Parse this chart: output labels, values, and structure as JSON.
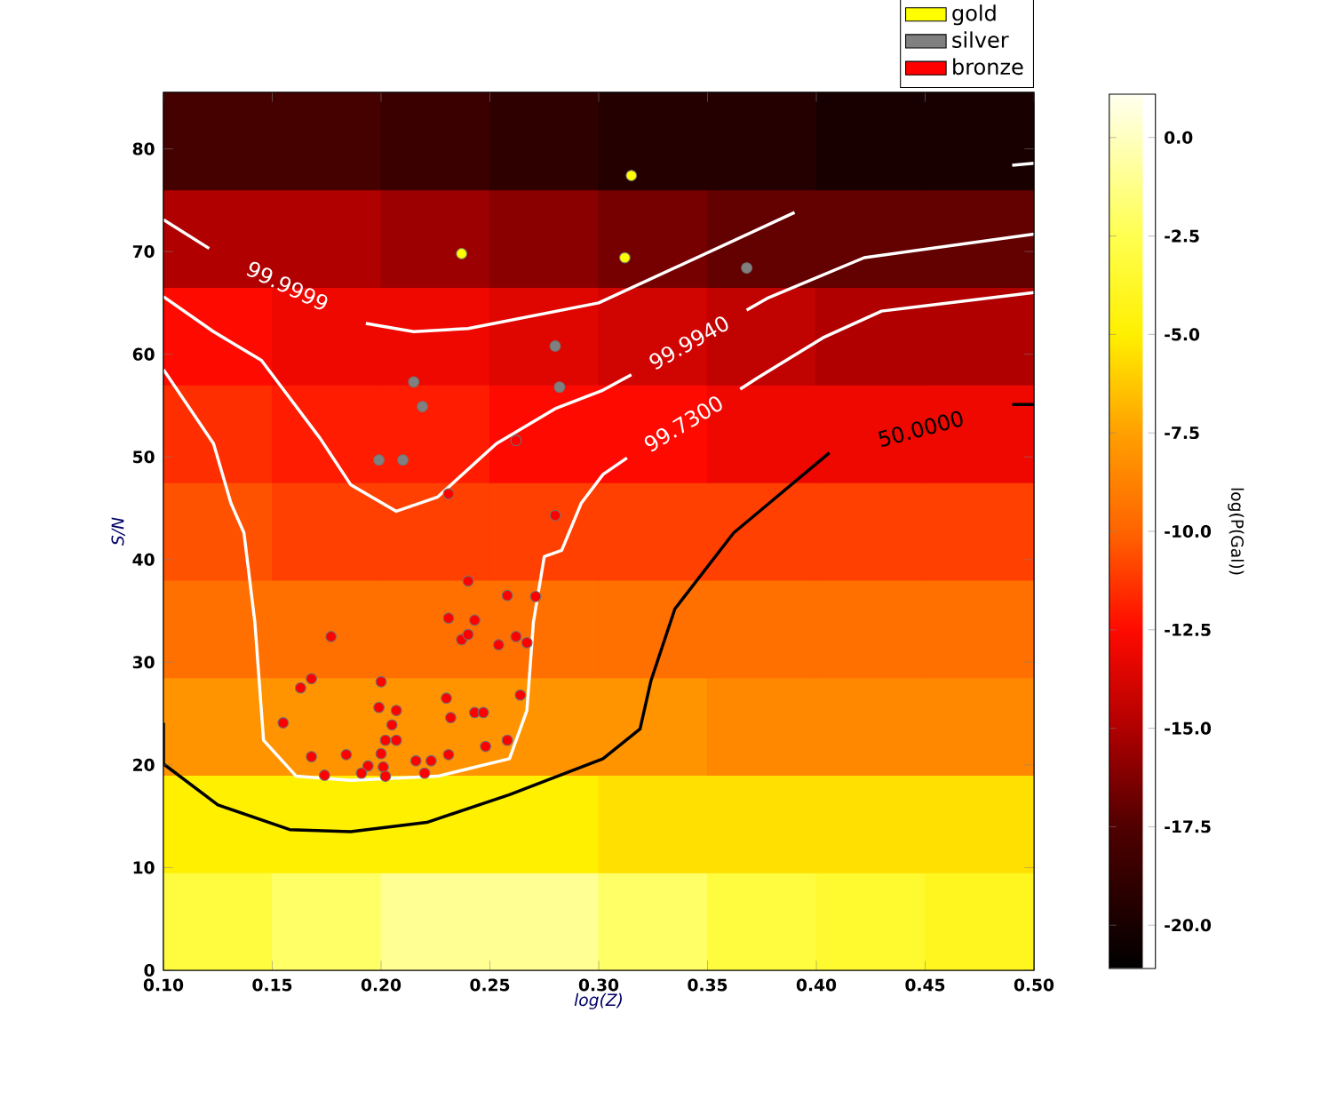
{
  "chart_data": [
    {
      "type": "heatmap",
      "clabel": "log(P(Gal))",
      "clim": [
        -21.1,
        1.1
      ],
      "cticks": [
        {
          "value": 0,
          "label": "0.0"
        },
        {
          "value": -2.5,
          "label": "-2.5"
        },
        {
          "value": -5,
          "label": "-5.0"
        },
        {
          "value": -7.5,
          "label": "-7.5"
        },
        {
          "value": -10,
          "label": "-10.0"
        },
        {
          "value": -12.5,
          "label": "-12.5"
        },
        {
          "value": -15,
          "label": "-15.0"
        },
        {
          "value": -17.5,
          "label": "-17.5"
        },
        {
          "value": -20,
          "label": "-20.0"
        }
      ],
      "categories": [
        null,
        null,
        null,
        null,
        null,
        null,
        null,
        null
      ],
      "y_categories": [
        null,
        null,
        null,
        null,
        null,
        null,
        null,
        null,
        null
      ],
      "cells": [
        [
          -18,
          -18,
          -18.5,
          -19,
          -19.5,
          -19.5,
          -20,
          -20
        ],
        [
          -15,
          -15,
          -15.5,
          -16,
          -16.5,
          -17,
          -17,
          -17
        ],
        [
          -12.5,
          -13,
          -13,
          -13.5,
          -14,
          -14.5,
          -15,
          -15
        ],
        [
          -11.5,
          -12,
          -12,
          -12.5,
          -12.5,
          -13,
          -13,
          -13
        ],
        [
          -10.5,
          -11,
          -11,
          -11,
          -11,
          -11,
          -11,
          -11
        ],
        [
          -9.5,
          -9.5,
          -9.5,
          -9.5,
          -9.5,
          -9.5,
          -9.5,
          -9.5
        ],
        [
          -8,
          -8,
          -8,
          -8,
          -8,
          -8.5,
          -8.5,
          -8.5
        ],
        [
          -5,
          -5,
          -5,
          -5,
          -5.5,
          -5.5,
          -5.5,
          -5.5
        ],
        [
          -3,
          -2,
          -1,
          -1,
          -2,
          -3,
          -3.5,
          -4
        ]
      ]
    },
    {
      "type": "scatter",
      "xlabel": "log(Z)",
      "ylabel": "S/N",
      "xlim": [
        0.1,
        0.5
      ],
      "xticks": [
        {
          "value": 0.1,
          "label": "0.10"
        },
        {
          "value": 0.15,
          "label": "0.15"
        },
        {
          "value": 0.2,
          "label": "0.20"
        },
        {
          "value": 0.25,
          "label": "0.25"
        },
        {
          "value": 0.3,
          "label": "0.30"
        },
        {
          "value": 0.35,
          "label": "0.35"
        },
        {
          "value": 0.4,
          "label": "0.40"
        },
        {
          "value": 0.45,
          "label": "0.45"
        },
        {
          "value": 0.5,
          "label": "0.50"
        }
      ],
      "ylim": [
        0,
        85.5
      ],
      "yticks": [
        0,
        10,
        20,
        30,
        40,
        50,
        60,
        70,
        80
      ],
      "legend": "top",
      "series": [
        {
          "type": "line",
          "name": "99.9999",
          "color": "#ffffff",
          "x": [
            0.1,
            0.121,
            null,
            0.193,
            0.215,
            0.24,
            0.3,
            0.39,
            null,
            0.49,
            0.5
          ],
          "values": [
            73.1,
            70.3,
            null,
            63.0,
            62.2,
            62.5,
            65.0,
            73.8,
            null,
            78.4,
            78.6
          ]
        },
        {
          "type": "line",
          "name": "99.9940",
          "color": "#ffffff",
          "x": [
            0.1,
            0.123,
            0.145,
            0.172,
            0.186,
            0.207,
            0.226,
            0.253,
            0.28,
            0.302,
            0.315,
            null,
            0.368,
            0.378,
            0.422,
            0.5
          ],
          "values": [
            65.6,
            62.2,
            59.4,
            51.8,
            47.3,
            44.7,
            46.1,
            51.3,
            54.7,
            56.5,
            58.0,
            null,
            64.3,
            65.5,
            69.4,
            71.7
          ]
        },
        {
          "type": "line",
          "name": "99.7300",
          "color": "#ffffff",
          "x": [
            0.1,
            0.123,
            0.131,
            0.137,
            0.142,
            0.146,
            0.161,
            0.186,
            0.226,
            0.259,
            0.267,
            0.27,
            0.275,
            0.283,
            0.292,
            0.302,
            0.313,
            null,
            0.365,
            0.373,
            0.403,
            0.43,
            0.5
          ],
          "values": [
            58.5,
            51.3,
            45.5,
            42.6,
            33.9,
            22.4,
            18.9,
            18.5,
            18.9,
            20.6,
            25.3,
            33.9,
            40.3,
            40.9,
            45.5,
            48.3,
            49.9,
            null,
            56.6,
            57.7,
            61.6,
            64.2,
            66.0
          ]
        },
        {
          "type": "line",
          "name": "50.0000",
          "color": "#000000",
          "x": [
            0.1,
            0.1,
            0.125,
            0.158,
            0.186,
            0.221,
            0.259,
            0.302,
            0.319,
            0.324,
            0.335,
            0.362,
            0.406,
            null,
            0.49,
            0.5
          ],
          "values": [
            24.1,
            20.1,
            16.1,
            13.7,
            13.5,
            14.4,
            17.1,
            20.6,
            23.5,
            28.2,
            35.2,
            42.6,
            50.4,
            null,
            55.1,
            55.1
          ]
        },
        {
          "type": "scatter",
          "name": "gold",
          "color": "#ffff00",
          "x": [
            0.237,
            0.315,
            0.312
          ],
          "values": [
            69.8,
            77.4,
            69.4
          ]
        },
        {
          "type": "scatter",
          "name": "silver",
          "color": "#808080",
          "x": [
            0.215,
            0.219,
            0.199,
            0.21,
            0.28,
            0.282,
            0.368
          ],
          "values": [
            57.3,
            54.9,
            49.7,
            49.7,
            60.8,
            56.8,
            68.4
          ]
        },
        {
          "type": "scatter",
          "name": "bronze",
          "color": "#ff0000",
          "x": [
            0.231,
            0.262,
            0.28,
            0.24,
            0.258,
            0.271,
            0.231,
            0.243,
            0.237,
            0.24,
            0.254,
            0.262,
            0.267,
            0.177,
            0.163,
            0.168,
            0.2,
            0.23,
            0.264,
            0.155,
            0.199,
            0.207,
            0.232,
            0.243,
            0.247,
            0.205,
            0.207,
            0.202,
            0.168,
            0.184,
            0.2,
            0.231,
            0.248,
            0.258,
            0.194,
            0.191,
            0.201,
            0.202,
            0.174,
            0.216,
            0.223,
            0.22
          ],
          "values": [
            46.4,
            51.6,
            44.3,
            37.9,
            36.5,
            36.4,
            34.3,
            34.1,
            32.2,
            32.7,
            31.7,
            32.5,
            31.9,
            32.5,
            27.5,
            28.4,
            28.1,
            26.5,
            26.8,
            24.1,
            25.6,
            25.3,
            24.6,
            25.1,
            25.1,
            23.9,
            22.4,
            22.4,
            20.8,
            21.0,
            21.1,
            21.0,
            21.8,
            22.4,
            19.9,
            19.2,
            19.8,
            18.9,
            19.0,
            20.4,
            20.4,
            19.2
          ]
        }
      ]
    }
  ]
}
